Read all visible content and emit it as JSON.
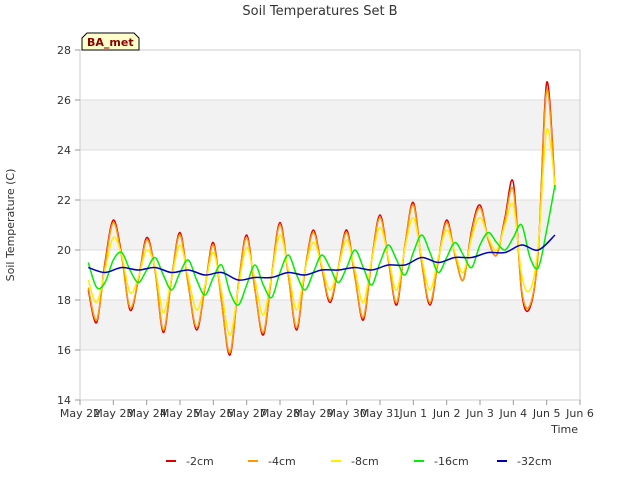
{
  "chart_data": {
    "type": "line",
    "title": "Soil Temperatures Set B",
    "xlabel": "Time",
    "ylabel": "Soil Temperature (C)",
    "ylim": [
      14,
      28
    ],
    "xlim": [
      "May 22",
      "Jun 6"
    ],
    "y_ticks": [
      14,
      16,
      18,
      20,
      22,
      24,
      26,
      28
    ],
    "x_ticks": [
      "May 22",
      "May 23",
      "May 24",
      "May 25",
      "May 26",
      "May 27",
      "May 28",
      "May 29",
      "May 30",
      "May 31",
      "Jun 1",
      "Jun 2",
      "Jun 3",
      "Jun 4",
      "Jun 5",
      "Jun 6"
    ],
    "grid": "horizontal bands",
    "legend_position": "bottom",
    "badge": "BA_met",
    "series": [
      {
        "name": "-2cm",
        "color": "#dd0000",
        "x": [
          "May 22 06:00",
          "May 22 12:00",
          "May 22 18:00",
          "May 23 00:00",
          "May 23 06:00",
          "May 23 12:00",
          "May 23 18:00",
          "May 24 00:00",
          "May 24 06:00",
          "May 24 12:00",
          "May 24 18:00",
          "May 25 00:00",
          "May 25 06:00",
          "May 25 12:00",
          "May 25 18:00",
          "May 26 00:00",
          "May 26 06:00",
          "May 26 12:00",
          "May 26 18:00",
          "May 27 00:00",
          "May 27 06:00",
          "May 27 12:00",
          "May 27 18:00",
          "May 28 00:00",
          "May 28 06:00",
          "May 28 12:00",
          "May 28 18:00",
          "May 29 00:00",
          "May 29 06:00",
          "May 29 12:00",
          "May 29 18:00",
          "May 30 00:00",
          "May 30 06:00",
          "May 30 12:00",
          "May 30 18:00",
          "May 31 00:00",
          "May 31 06:00",
          "May 31 12:00",
          "May 31 18:00",
          "Jun 1 00:00",
          "Jun 1 06:00",
          "Jun 1 12:00",
          "Jun 1 18:00",
          "Jun 2 00:00",
          "Jun 2 06:00",
          "Jun 2 12:00",
          "Jun 2 18:00",
          "Jun 3 00:00",
          "Jun 3 06:00",
          "Jun 3 12:00",
          "Jun 3 18:00",
          "Jun 4 00:00",
          "Jun 4 06:00",
          "Jun 4 12:00",
          "Jun 4 18:00",
          "Jun 5 00:00",
          "Jun 5 06:00"
        ],
        "values": [
          18.4,
          17.1,
          19.5,
          21.2,
          19.8,
          17.6,
          18.8,
          20.5,
          19.2,
          16.7,
          18.9,
          20.7,
          18.6,
          16.8,
          18.5,
          20.3,
          17.9,
          15.8,
          18.6,
          20.6,
          18.4,
          16.6,
          19.0,
          21.1,
          19.0,
          16.8,
          19.2,
          20.8,
          19.3,
          17.9,
          19.3,
          20.8,
          18.9,
          17.2,
          19.6,
          21.4,
          19.6,
          17.8,
          20.2,
          21.9,
          19.5,
          17.8,
          19.6,
          21.2,
          19.8,
          18.8,
          20.8,
          21.8,
          20.4,
          19.8,
          21.3,
          22.7,
          18.3,
          17.7,
          20.0,
          26.7,
          22.5
        ]
      },
      {
        "name": "-4cm",
        "color": "#ff9900",
        "x": [
          "May 22 06:00",
          "May 22 12:00",
          "May 22 18:00",
          "May 23 00:00",
          "May 23 06:00",
          "May 23 12:00",
          "May 23 18:00",
          "May 24 00:00",
          "May 24 06:00",
          "May 24 12:00",
          "May 24 18:00",
          "May 25 00:00",
          "May 25 06:00",
          "May 25 12:00",
          "May 25 18:00",
          "May 26 00:00",
          "May 26 06:00",
          "May 26 12:00",
          "May 26 18:00",
          "May 27 00:00",
          "May 27 06:00",
          "May 27 12:00",
          "May 27 18:00",
          "May 28 00:00",
          "May 28 06:00",
          "May 28 12:00",
          "May 28 18:00",
          "May 29 00:00",
          "May 29 06:00",
          "May 29 12:00",
          "May 29 18:00",
          "May 30 00:00",
          "May 30 06:00",
          "May 30 12:00",
          "May 30 18:00",
          "May 31 00:00",
          "May 31 06:00",
          "May 31 12:00",
          "May 31 18:00",
          "Jun 1 00:00",
          "Jun 1 06:00",
          "Jun 1 12:00",
          "Jun 1 18:00",
          "Jun 2 00:00",
          "Jun 2 06:00",
          "Jun 2 12:00",
          "Jun 2 18:00",
          "Jun 3 00:00",
          "Jun 3 06:00",
          "Jun 3 12:00",
          "Jun 3 18:00",
          "Jun 4 00:00",
          "Jun 4 06:00",
          "Jun 4 12:00",
          "Jun 4 18:00",
          "Jun 5 00:00",
          "Jun 5 06:00"
        ],
        "values": [
          18.5,
          17.2,
          19.4,
          21.1,
          19.7,
          17.7,
          18.8,
          20.4,
          19.2,
          16.8,
          18.9,
          20.6,
          18.6,
          16.9,
          18.5,
          20.2,
          17.9,
          15.9,
          18.6,
          20.5,
          18.4,
          16.7,
          19.0,
          21.0,
          19.0,
          16.9,
          19.2,
          20.7,
          19.3,
          18.0,
          19.3,
          20.7,
          18.9,
          17.3,
          19.6,
          21.3,
          19.6,
          17.9,
          20.2,
          21.8,
          19.5,
          17.9,
          19.6,
          21.1,
          19.8,
          18.8,
          20.7,
          21.7,
          20.4,
          19.8,
          21.2,
          22.4,
          18.4,
          17.8,
          20.0,
          26.4,
          22.4
        ]
      },
      {
        "name": "-8cm",
        "color": "#ffee00",
        "x": [
          "May 22 06:00",
          "May 22 12:00",
          "May 22 18:00",
          "May 23 00:00",
          "May 23 06:00",
          "May 23 12:00",
          "May 23 18:00",
          "May 24 00:00",
          "May 24 06:00",
          "May 24 12:00",
          "May 24 18:00",
          "May 25 00:00",
          "May 25 06:00",
          "May 25 12:00",
          "May 25 18:00",
          "May 26 00:00",
          "May 26 06:00",
          "May 26 12:00",
          "May 26 18:00",
          "May 27 00:00",
          "May 27 06:00",
          "May 27 12:00",
          "May 27 18:00",
          "May 28 00:00",
          "May 28 06:00",
          "May 28 12:00",
          "May 28 18:00",
          "May 29 00:00",
          "May 29 06:00",
          "May 29 12:00",
          "May 29 18:00",
          "May 30 00:00",
          "May 30 06:00",
          "May 30 12:00",
          "May 30 18:00",
          "May 31 00:00",
          "May 31 06:00",
          "May 31 12:00",
          "May 31 18:00",
          "Jun 1 00:00",
          "Jun 1 06:00",
          "Jun 1 12:00",
          "Jun 1 18:00",
          "Jun 2 00:00",
          "Jun 2 06:00",
          "Jun 2 12:00",
          "Jun 2 18:00",
          "Jun 3 00:00",
          "Jun 3 06:00",
          "Jun 3 12:00",
          "Jun 3 18:00",
          "Jun 4 00:00",
          "Jun 4 06:00",
          "Jun 4 12:00",
          "Jun 4 18:00",
          "Jun 5 00:00",
          "Jun 5 06:00"
        ],
        "values": [
          18.8,
          17.9,
          19.2,
          20.5,
          19.8,
          18.3,
          18.9,
          20.0,
          19.3,
          17.5,
          18.9,
          20.2,
          18.9,
          17.6,
          18.6,
          19.9,
          18.3,
          16.6,
          18.5,
          20.1,
          18.8,
          17.4,
          19.0,
          20.6,
          19.2,
          17.6,
          19.2,
          20.3,
          19.4,
          18.4,
          19.3,
          20.4,
          19.2,
          17.9,
          19.6,
          20.9,
          19.7,
          18.4,
          20.1,
          21.3,
          19.7,
          18.4,
          19.7,
          20.8,
          19.9,
          19.1,
          20.5,
          21.3,
          20.5,
          20.0,
          21.0,
          21.8,
          19.0,
          18.4,
          20.2,
          24.8,
          22.6
        ]
      },
      {
        "name": "-16cm",
        "color": "#00ee00",
        "x": [
          "May 22 06:00",
          "May 22 12:00",
          "May 22 18:00",
          "May 23 00:00",
          "May 23 06:00",
          "May 23 12:00",
          "May 23 18:00",
          "May 24 00:00",
          "May 24 06:00",
          "May 24 12:00",
          "May 24 18:00",
          "May 25 00:00",
          "May 25 06:00",
          "May 25 12:00",
          "May 25 18:00",
          "May 26 00:00",
          "May 26 06:00",
          "May 26 12:00",
          "May 26 18:00",
          "May 27 00:00",
          "May 27 06:00",
          "May 27 12:00",
          "May 27 18:00",
          "May 28 00:00",
          "May 28 06:00",
          "May 28 12:00",
          "May 28 18:00",
          "May 29 00:00",
          "May 29 06:00",
          "May 29 12:00",
          "May 29 18:00",
          "May 30 00:00",
          "May 30 06:00",
          "May 30 12:00",
          "May 30 18:00",
          "May 31 00:00",
          "May 31 06:00",
          "May 31 12:00",
          "May 31 18:00",
          "Jun 1 00:00",
          "Jun 1 06:00",
          "Jun 1 12:00",
          "Jun 1 18:00",
          "Jun 2 00:00",
          "Jun 2 06:00",
          "Jun 2 12:00",
          "Jun 2 18:00",
          "Jun 3 00:00",
          "Jun 3 06:00",
          "Jun 3 12:00",
          "Jun 3 18:00",
          "Jun 4 00:00",
          "Jun 4 06:00",
          "Jun 4 12:00",
          "Jun 4 18:00",
          "Jun 5 00:00",
          "Jun 5 06:00"
        ],
        "values": [
          19.5,
          18.5,
          18.7,
          19.6,
          19.9,
          19.2,
          18.7,
          19.2,
          19.7,
          19.0,
          18.4,
          19.1,
          19.6,
          18.8,
          18.2,
          18.9,
          19.4,
          18.3,
          17.8,
          18.6,
          19.4,
          18.6,
          18.1,
          19.1,
          19.8,
          19.0,
          18.4,
          19.1,
          19.8,
          19.3,
          18.7,
          19.3,
          20.0,
          19.3,
          18.6,
          19.5,
          20.2,
          19.6,
          19.0,
          19.9,
          20.6,
          19.9,
          19.1,
          19.7,
          20.3,
          19.8,
          19.3,
          20.2,
          20.7,
          20.3,
          20.0,
          20.5,
          21.0,
          19.7,
          19.3,
          20.8,
          22.6
        ]
      },
      {
        "name": "-32cm",
        "color": "#0000bb",
        "x": [
          "May 22 06:00",
          "May 22 18:00",
          "May 23 06:00",
          "May 23 18:00",
          "May 24 06:00",
          "May 24 18:00",
          "May 25 06:00",
          "May 25 18:00",
          "May 26 06:00",
          "May 26 18:00",
          "May 27 06:00",
          "May 27 18:00",
          "May 28 06:00",
          "May 28 18:00",
          "May 29 06:00",
          "May 29 18:00",
          "May 30 06:00",
          "May 30 18:00",
          "May 31 06:00",
          "May 31 18:00",
          "Jun 1 06:00",
          "Jun 1 18:00",
          "Jun 2 06:00",
          "Jun 2 18:00",
          "Jun 3 06:00",
          "Jun 3 18:00",
          "Jun 4 06:00",
          "Jun 4 18:00",
          "Jun 5 06:00"
        ],
        "values": [
          19.3,
          19.1,
          19.3,
          19.2,
          19.3,
          19.1,
          19.2,
          19.0,
          19.1,
          18.8,
          18.9,
          18.9,
          19.1,
          19.0,
          19.2,
          19.2,
          19.3,
          19.2,
          19.4,
          19.4,
          19.7,
          19.5,
          19.7,
          19.7,
          19.9,
          19.9,
          20.2,
          20.0,
          20.6
        ]
      }
    ]
  }
}
